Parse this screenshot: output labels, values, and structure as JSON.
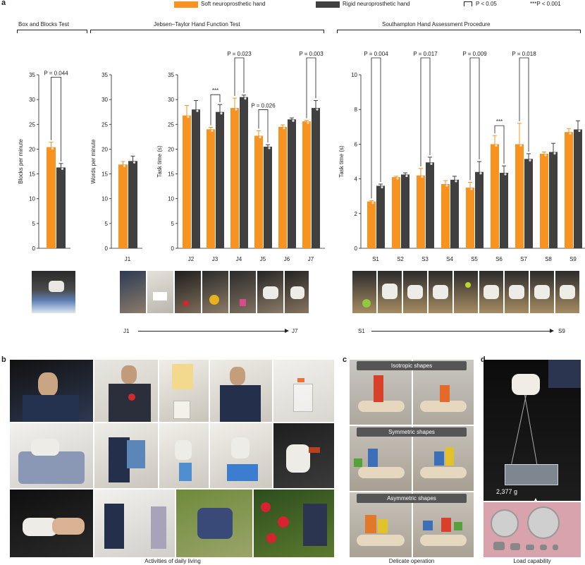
{
  "panel_letters": {
    "a": "a",
    "b": "b",
    "c": "c",
    "d": "d"
  },
  "legend": {
    "soft_label": "Soft neuroprosthetic hand",
    "rigid_label": "Rigid neuroprosthetic hand",
    "p05_label": "P < 0.05",
    "p001_label": "***P < 0.001",
    "soft_color": "#f7931e",
    "rigid_color": "#404040"
  },
  "sections": {
    "bbt": "Box and Blocks Test",
    "jt": "Jebsen–Taylor Hand Function Test",
    "shap": "Southampton Hand Assessment Procedure"
  },
  "arrows": {
    "j_start": "J1",
    "j_end": "J7",
    "s_start": "S1",
    "s_end": "S9"
  },
  "captions": {
    "b": "Activities of daily living",
    "c": "Delicate operation",
    "d": "Load capability",
    "weight": "2,377 g"
  },
  "banners": {
    "iso": "Isotropic shapes",
    "sym": "Symmetric shapes",
    "asym": "Asymmetric shapes"
  },
  "chart_data": [
    {
      "type": "bar",
      "categories": [
        ""
      ],
      "ylabel": "Blocks per minute",
      "ylim": [
        0,
        35
      ],
      "yticks": [
        0,
        5,
        10,
        15,
        20,
        25,
        30,
        35
      ],
      "series": [
        {
          "name": "Soft neuroprosthetic hand",
          "values": [
            20.4
          ],
          "err": [
            1.0
          ]
        },
        {
          "name": "Rigid neuroprosthetic hand",
          "values": [
            16.3
          ],
          "err": [
            0.8
          ]
        }
      ],
      "annotations": [
        {
          "text": "P = 0.044",
          "index": 0
        }
      ]
    },
    {
      "type": "bar",
      "categories": [
        "J1"
      ],
      "ylabel": "Words per minute",
      "ylim": [
        0,
        35
      ],
      "yticks": [
        0,
        5,
        10,
        15,
        20,
        25,
        30,
        35
      ],
      "series": [
        {
          "name": "Soft neuroprosthetic hand",
          "values": [
            16.9
          ],
          "err": [
            0.6
          ]
        },
        {
          "name": "Rigid neuroprosthetic hand",
          "values": [
            17.6
          ],
          "err": [
            1.0
          ]
        }
      ],
      "annotations": []
    },
    {
      "type": "bar",
      "categories": [
        "J2",
        "J3",
        "J4",
        "J5",
        "J6",
        "J7"
      ],
      "ylabel": "Task time (s)",
      "ylim": [
        0,
        35
      ],
      "yticks": [
        0,
        5,
        10,
        15,
        20,
        25,
        30,
        35
      ],
      "series": [
        {
          "name": "Soft neuroprosthetic hand",
          "values": [
            26.8,
            24.0,
            28.3,
            22.7,
            24.5,
            25.6
          ],
          "err": [
            2.0,
            0.4,
            2.0,
            1.0,
            0.4,
            0.2
          ]
        },
        {
          "name": "Rigid neuroprosthetic hand",
          "values": [
            28.0,
            27.5,
            30.5,
            20.5,
            26.0,
            28.3
          ],
          "err": [
            1.8,
            1.5,
            0.4,
            0.4,
            0.3,
            1.5
          ]
        }
      ],
      "annotations": [
        {
          "text": "***",
          "index": 1
        },
        {
          "text": "P = 0.023",
          "index": 2
        },
        {
          "text": "P = 0.026",
          "index": 3
        },
        {
          "text": "P = 0.003",
          "index": 5
        }
      ]
    },
    {
      "type": "bar",
      "categories": [
        "S1",
        "S2",
        "S3",
        "S4",
        "S5",
        "S6",
        "S7",
        "S8",
        "S9"
      ],
      "ylabel": "Task time (s)",
      "ylim": [
        0,
        10
      ],
      "yticks": [
        0,
        2,
        4,
        6,
        8,
        10
      ],
      "series": [
        {
          "name": "Soft neuroprosthetic hand",
          "values": [
            2.7,
            4.1,
            4.2,
            3.7,
            3.5,
            6.0,
            6.0,
            5.45,
            6.7
          ],
          "err": [
            0.05,
            0.05,
            0.4,
            0.2,
            0.3,
            0.5,
            1.2,
            0.1,
            0.2
          ]
        },
        {
          "name": "Rigid neuroprosthetic hand",
          "values": [
            3.6,
            4.25,
            4.95,
            3.95,
            4.4,
            4.35,
            5.15,
            5.55,
            6.85
          ],
          "err": [
            0.1,
            0.1,
            0.3,
            0.2,
            0.6,
            0.4,
            0.3,
            0.5,
            0.5
          ]
        }
      ],
      "annotations": [
        {
          "text": "P = 0.004",
          "index": 0
        },
        {
          "text": "P = 0.017",
          "index": 2
        },
        {
          "text": "P = 0.009",
          "index": 4
        },
        {
          "text": "***",
          "index": 5
        },
        {
          "text": "P = 0.018",
          "index": 6
        }
      ]
    }
  ]
}
